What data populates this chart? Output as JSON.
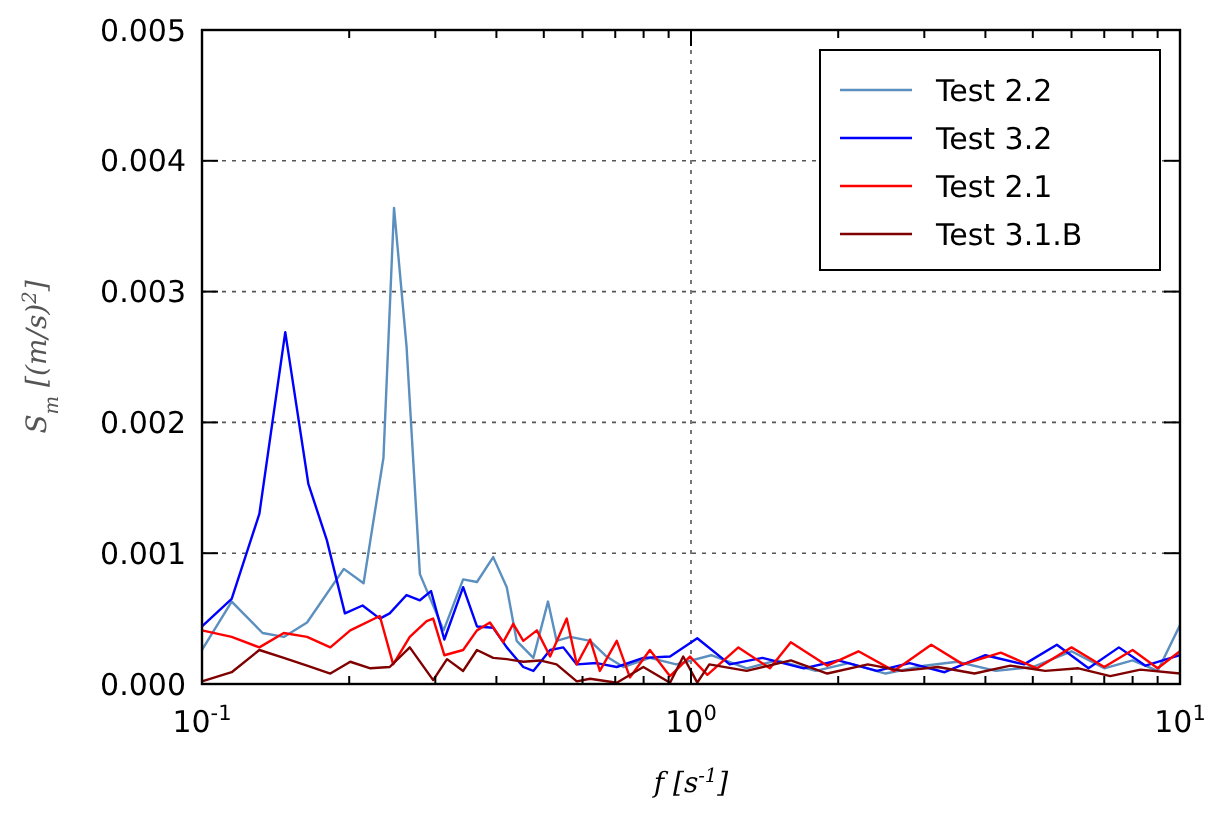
{
  "chart_data": {
    "type": "line",
    "xlabel": "f [s$^{-1}$]",
    "ylabel": "S$_{m}$ [(m/s)$^{2}$]",
    "log": "x",
    "xlim": [
      0.1,
      10
    ],
    "xticks": [
      {
        "value": 0.1,
        "label": "10$^{-1}$"
      },
      {
        "value": 1,
        "label": "10$^{0}$"
      },
      {
        "value": 10,
        "label": "10$^{1}$"
      }
    ],
    "ylim": [
      0,
      0.005
    ],
    "yticks": [
      {
        "value": 0,
        "label": "0.000"
      },
      {
        "value": 0.001,
        "label": "0.001"
      },
      {
        "value": 0.002,
        "label": "0.002"
      },
      {
        "value": 0.003,
        "label": "0.003"
      },
      {
        "value": 0.004,
        "label": "0.004"
      },
      {
        "value": 0.005,
        "label": "0.005"
      }
    ],
    "grid": true,
    "legend": "top right",
    "line_style": "solid",
    "series": [
      {
        "name": "Test 2.2",
        "color": "#5b8fbf",
        "x": [
          0.1,
          0.115,
          0.133,
          0.147,
          0.164,
          0.195,
          0.214,
          0.235,
          0.247,
          0.262,
          0.279,
          0.312,
          0.342,
          0.365,
          0.394,
          0.42,
          0.44,
          0.476,
          0.51,
          0.531,
          0.566,
          0.622,
          0.672,
          0.727,
          0.824,
          0.933,
          1.1,
          1.3,
          1.5,
          1.8,
          2.1,
          2.5,
          3,
          3.5,
          4.2,
          5,
          6,
          7,
          8,
          9,
          10
        ],
        "values": [
          0.00026,
          0.00063,
          0.00039,
          0.00036,
          0.00047,
          0.00088,
          0.00077,
          0.00173,
          0.00364,
          0.00258,
          0.00084,
          0.00041,
          0.0008,
          0.00078,
          0.00097,
          0.00074,
          0.00033,
          0.0002,
          0.00063,
          0.00033,
          0.00036,
          0.00033,
          0.00021,
          0.00013,
          0.0002,
          0.00015,
          0.00022,
          0.00012,
          0.00018,
          0.0001,
          0.00016,
          8e-05,
          0.00014,
          0.00017,
          0.0001,
          0.00013,
          0.00025,
          0.00012,
          0.00018,
          0.0001,
          0.00045
        ]
      },
      {
        "name": "Test 3.2",
        "color": "#0000ff",
        "x": [
          0.1,
          0.115,
          0.131,
          0.148,
          0.165,
          0.18,
          0.196,
          0.213,
          0.231,
          0.242,
          0.262,
          0.279,
          0.294,
          0.313,
          0.342,
          0.365,
          0.394,
          0.42,
          0.454,
          0.476,
          0.515,
          0.548,
          0.584,
          0.641,
          0.705,
          0.799,
          0.906,
          1.03,
          1.2,
          1.4,
          1.7,
          2,
          2.4,
          2.8,
          3.3,
          4,
          4.8,
          5.6,
          6.5,
          7.5,
          8.5,
          10
        ],
        "values": [
          0.00044,
          0.00065,
          0.0013,
          0.00269,
          0.00153,
          0.0011,
          0.00054,
          0.0006,
          0.0005,
          0.00054,
          0.00068,
          0.00064,
          0.00071,
          0.00034,
          0.00074,
          0.00044,
          0.00043,
          0.00028,
          0.00013,
          0.0001,
          0.00026,
          0.00028,
          0.00015,
          0.00016,
          0.00013,
          0.0002,
          0.00021,
          0.00035,
          0.00015,
          0.0002,
          0.00012,
          0.00018,
          0.0001,
          0.00016,
          9e-05,
          0.00022,
          0.00015,
          0.0003,
          0.00012,
          0.00028,
          0.00014,
          0.00022
        ]
      },
      {
        "name": "Test 2.1",
        "color": "#ff0000",
        "x": [
          0.1,
          0.115,
          0.131,
          0.147,
          0.164,
          0.183,
          0.201,
          0.231,
          0.246,
          0.266,
          0.288,
          0.297,
          0.313,
          0.342,
          0.365,
          0.388,
          0.413,
          0.433,
          0.454,
          0.484,
          0.515,
          0.557,
          0.584,
          0.622,
          0.651,
          0.705,
          0.75,
          0.824,
          0.906,
          0.995,
          1.08,
          1.25,
          1.45,
          1.6,
          1.9,
          2.2,
          2.6,
          3.1,
          3.6,
          4.3,
          5.1,
          6,
          7,
          8,
          9,
          10
        ],
        "values": [
          0.00041,
          0.00036,
          0.00028,
          0.00039,
          0.00036,
          0.00028,
          0.00041,
          0.00052,
          0.00015,
          0.00036,
          0.00048,
          0.0005,
          0.00022,
          0.00026,
          0.00041,
          0.00047,
          0.00032,
          0.00046,
          0.00033,
          0.00041,
          0.00021,
          0.0005,
          0.00015,
          0.00034,
          0.0001,
          0.00033,
          5e-05,
          0.00026,
          6e-05,
          0.00021,
          7e-05,
          0.00028,
          0.00012,
          0.00032,
          0.00014,
          0.00025,
          0.0001,
          0.0003,
          0.00015,
          0.00024,
          0.00012,
          0.00028,
          0.00013,
          0.00026,
          0.00012,
          0.00025
        ]
      },
      {
        "name": "Test 3.1.B",
        "color": "#800000",
        "x": [
          0.1,
          0.115,
          0.131,
          0.147,
          0.164,
          0.183,
          0.201,
          0.221,
          0.242,
          0.266,
          0.297,
          0.317,
          0.342,
          0.365,
          0.394,
          0.42,
          0.454,
          0.491,
          0.531,
          0.584,
          0.622,
          0.705,
          0.799,
          0.906,
          0.964,
          1.03,
          1.09,
          1.3,
          1.6,
          1.9,
          2.3,
          2.7,
          3.2,
          3.8,
          4.5,
          5.3,
          6.2,
          7.2,
          8.3,
          10
        ],
        "values": [
          2e-05,
          9e-05,
          0.00026,
          0.0002,
          0.00014,
          8e-05,
          0.00017,
          0.00012,
          0.00013,
          0.00028,
          3e-05,
          0.00019,
          0.0001,
          0.00026,
          0.0002,
          0.00019,
          0.00017,
          0.00018,
          0.00015,
          2e-05,
          4e-05,
          1e-05,
          0.00013,
          1e-05,
          0.00021,
          1e-05,
          0.00015,
          0.0001,
          0.00018,
          8e-05,
          0.00015,
          0.0001,
          0.00013,
          8e-05,
          0.00014,
          0.0001,
          0.00012,
          6e-05,
          0.00011,
          8e-05
        ]
      }
    ]
  }
}
